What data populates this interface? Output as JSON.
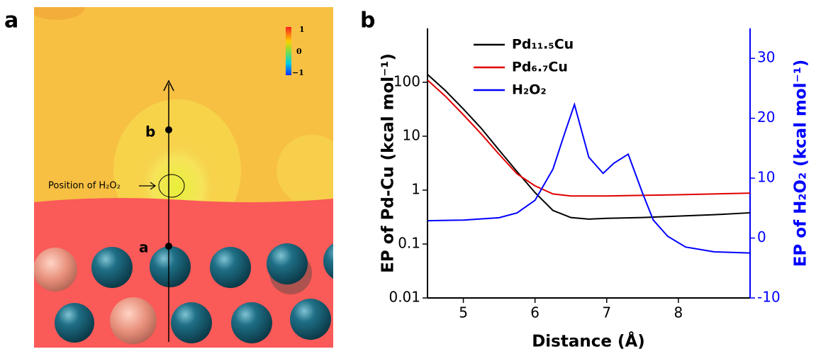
{
  "panel_labels": [
    "a",
    "b"
  ],
  "panel_a": {
    "colorbar_labels": [
      "1",
      "0",
      "−1"
    ],
    "point_labels": [
      "b",
      "a"
    ],
    "annotation": "Position of H₂O₂"
  },
  "chart_data": {
    "type": "line",
    "xlabel": "Distance (Å)",
    "ylabel": "EP of Pd-Cu (kcal mol⁻¹)",
    "y2label": "EP of H₂O₂ (kcal mol⁻¹)",
    "xlim": [
      4.5,
      9.0
    ],
    "xticks": [
      5,
      6,
      7,
      8
    ],
    "ylim": [
      0.01,
      1000
    ],
    "yscale": "log",
    "yticks": [
      0.01,
      0.1,
      1,
      10,
      100
    ],
    "y2lim": [
      -10,
      35
    ],
    "y2ticks": [
      -10,
      0,
      10,
      20,
      30
    ],
    "y2color": "#0000ff",
    "legend": "upper left",
    "series": [
      {
        "name": "Pd₁₁.₅Cu",
        "color": "#000000",
        "x": [
          4.5,
          4.75,
          5.0,
          5.25,
          5.5,
          5.75,
          6.0,
          6.25,
          6.5,
          6.75,
          7.0,
          7.5,
          8.0,
          8.5,
          9.0
        ],
        "values": [
          140,
          70,
          32,
          14,
          5.5,
          2.2,
          0.9,
          0.42,
          0.31,
          0.29,
          0.3,
          0.31,
          0.33,
          0.35,
          0.38
        ]
      },
      {
        "name": "Pd₆.₇Cu",
        "color": "#e00000",
        "x": [
          4.5,
          4.75,
          5.0,
          5.25,
          5.5,
          5.75,
          6.0,
          6.25,
          6.5,
          7.0,
          7.5,
          8.0,
          8.5,
          9.0
        ],
        "values": [
          110,
          55,
          25,
          11,
          4.6,
          2.0,
          1.2,
          0.85,
          0.78,
          0.78,
          0.8,
          0.82,
          0.85,
          0.88
        ]
      },
      {
        "name": "H₂O₂",
        "color": "#0000ff",
        "axis": "y2",
        "x": [
          4.5,
          5.0,
          5.5,
          5.75,
          6.0,
          6.25,
          6.4,
          6.55,
          6.75,
          6.95,
          7.1,
          7.3,
          7.5,
          7.65,
          7.85,
          8.1,
          8.5,
          9.0
        ],
        "values": [
          2.9,
          3.0,
          3.4,
          4.2,
          6.3,
          11.5,
          17,
          22.3,
          13.5,
          10.8,
          12.5,
          14.0,
          7.5,
          3.0,
          0.3,
          -1.5,
          -2.3,
          -2.5
        ]
      }
    ]
  }
}
